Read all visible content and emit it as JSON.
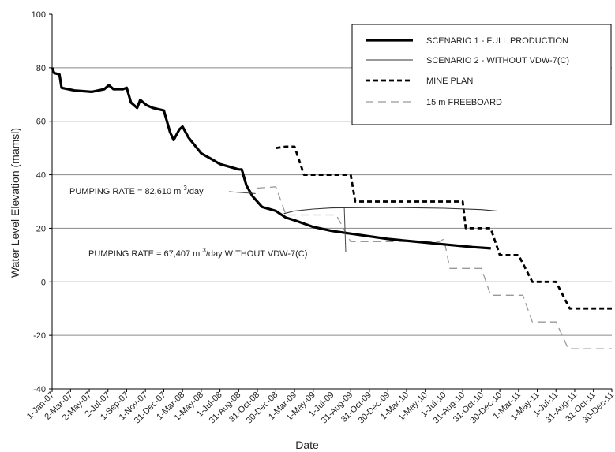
{
  "chart_data": {
    "type": "line",
    "xlabel": "Date",
    "ylabel": "Water Level Elevation (mamsl)",
    "ylim": [
      -40,
      100
    ],
    "yticks": [
      -40,
      -20,
      0,
      20,
      40,
      60,
      80,
      100
    ],
    "xlim": [
      "2007-01-01",
      "2011-12-30"
    ],
    "x_tick_labels": [
      {
        "date": "2007-01-01",
        "label": "1-Jan-07"
      },
      {
        "date": "2007-03-02",
        "label": "2-Mar-07"
      },
      {
        "date": "2007-05-02",
        "label": "2-May-07"
      },
      {
        "date": "2007-07-02",
        "label": "2-Jul-07"
      },
      {
        "date": "2007-09-01",
        "label": "1-Sep-07"
      },
      {
        "date": "2007-11-01",
        "label": "1-Nov-07"
      },
      {
        "date": "2007-12-31",
        "label": "31-Dec-07"
      },
      {
        "date": "2008-03-01",
        "label": "1-Mar-08"
      },
      {
        "date": "2008-05-01",
        "label": "1-May-08"
      },
      {
        "date": "2008-07-01",
        "label": "1-Jul-08"
      },
      {
        "date": "2008-08-31",
        "label": "31-Aug-08"
      },
      {
        "date": "2008-10-31",
        "label": "31-Oct-08"
      },
      {
        "date": "2008-12-30",
        "label": "30-Dec-08"
      },
      {
        "date": "2009-03-01",
        "label": "1-Mar-09"
      },
      {
        "date": "2009-05-01",
        "label": "1-May-09"
      },
      {
        "date": "2009-07-01",
        "label": "1-Jul-09"
      },
      {
        "date": "2009-08-31",
        "label": "31-Aug-09"
      },
      {
        "date": "2009-10-31",
        "label": "31-Oct-09"
      },
      {
        "date": "2009-12-30",
        "label": "30-Dec-09"
      },
      {
        "date": "2010-03-01",
        "label": "1-Mar-10"
      },
      {
        "date": "2010-05-01",
        "label": "1-May-10"
      },
      {
        "date": "2010-07-01",
        "label": "1-Jul-10"
      },
      {
        "date": "2010-08-31",
        "label": "31-Aug-10"
      },
      {
        "date": "2010-10-31",
        "label": "31-Oct-10"
      },
      {
        "date": "2010-12-30",
        "label": "30-Dec-10"
      },
      {
        "date": "2011-03-01",
        "label": "1-Mar-11"
      },
      {
        "date": "2011-05-01",
        "label": "1-May-11"
      },
      {
        "date": "2011-07-01",
        "label": "1-Jul-11"
      },
      {
        "date": "2011-08-31",
        "label": "31-Aug-11"
      },
      {
        "date": "2011-10-31",
        "label": "31-Oct-11"
      },
      {
        "date": "2011-12-30",
        "label": "30-Dec-11"
      }
    ],
    "grid": "horizontal",
    "legend_position": "top-right",
    "series": [
      {
        "name": "SCENARIO 1 - FULL PRODUCTION",
        "style": "solid-thick",
        "color": "#000000",
        "points": [
          [
            "2007-01-01",
            80
          ],
          [
            "2007-01-08",
            78
          ],
          [
            "2007-01-25",
            77.5
          ],
          [
            "2007-02-01",
            72.5
          ],
          [
            "2007-03-15",
            71.5
          ],
          [
            "2007-05-10",
            71
          ],
          [
            "2007-06-20",
            72
          ],
          [
            "2007-07-05",
            73.5
          ],
          [
            "2007-07-20",
            72
          ],
          [
            "2007-08-20",
            72
          ],
          [
            "2007-09-01",
            72.5
          ],
          [
            "2007-09-15",
            67
          ],
          [
            "2007-10-05",
            65
          ],
          [
            "2007-10-15",
            68
          ],
          [
            "2007-11-05",
            66
          ],
          [
            "2007-11-25",
            65
          ],
          [
            "2007-12-31",
            64
          ],
          [
            "2008-01-20",
            56
          ],
          [
            "2008-02-01",
            53
          ],
          [
            "2008-02-20",
            57
          ],
          [
            "2008-03-01",
            58
          ],
          [
            "2008-03-20",
            54
          ],
          [
            "2008-05-01",
            48
          ],
          [
            "2008-06-01",
            46
          ],
          [
            "2008-07-01",
            44
          ],
          [
            "2008-08-01",
            43
          ],
          [
            "2008-08-31",
            42
          ],
          [
            "2008-09-10",
            42
          ],
          [
            "2008-09-25",
            36
          ],
          [
            "2008-10-15",
            32
          ],
          [
            "2008-11-15",
            28
          ],
          [
            "2008-12-30",
            26.5
          ],
          [
            "2009-02-01",
            24
          ],
          [
            "2009-03-01",
            23
          ],
          [
            "2009-05-01",
            20.5
          ],
          [
            "2009-07-01",
            19
          ],
          [
            "2009-10-01",
            17.5
          ],
          [
            "2010-01-01",
            16
          ],
          [
            "2010-04-01",
            15
          ],
          [
            "2010-07-01",
            14
          ],
          [
            "2010-10-01",
            13
          ],
          [
            "2010-12-01",
            12.5
          ]
        ]
      },
      {
        "name": "SCENARIO 2 - WITHOUT VDW-7(C)",
        "style": "solid-thin",
        "color": "#333333",
        "points": [
          [
            "2009-01-25",
            25.5
          ],
          [
            "2009-03-01",
            26.5
          ],
          [
            "2009-05-01",
            27.2
          ],
          [
            "2009-07-01",
            27.6
          ],
          [
            "2010-01-01",
            27.8
          ],
          [
            "2010-07-01",
            27.5
          ],
          [
            "2010-10-31",
            27.0
          ],
          [
            "2010-12-20",
            26.5
          ]
        ]
      },
      {
        "name": "MINE PLAN",
        "style": "dashed-thick",
        "color": "#000000",
        "points": [
          [
            "2008-12-30",
            50
          ],
          [
            "2009-02-01",
            50.5
          ],
          [
            "2009-03-01",
            50.5
          ],
          [
            "2009-04-01",
            40
          ],
          [
            "2009-08-31",
            40
          ],
          [
            "2009-09-15",
            30
          ],
          [
            "2010-07-15",
            30
          ],
          [
            "2010-08-31",
            30
          ],
          [
            "2010-09-10",
            20
          ],
          [
            "2010-11-30",
            20
          ],
          [
            "2010-12-30",
            10
          ],
          [
            "2011-03-01",
            10
          ],
          [
            "2011-04-15",
            0
          ],
          [
            "2011-07-01",
            0
          ],
          [
            "2011-08-15",
            -10
          ],
          [
            "2011-12-30",
            -10
          ]
        ]
      },
      {
        "name": "15 m FREEBOARD",
        "style": "dashed-thin",
        "color": "#999999",
        "points": [
          [
            "2008-10-31",
            35
          ],
          [
            "2008-12-30",
            35.5
          ],
          [
            "2009-02-01",
            25
          ],
          [
            "2009-07-15",
            25
          ],
          [
            "2009-08-31",
            15
          ],
          [
            "2010-06-15",
            15
          ],
          [
            "2010-07-01",
            16
          ],
          [
            "2010-07-20",
            5
          ],
          [
            "2010-10-31",
            5
          ],
          [
            "2010-11-30",
            -5
          ],
          [
            "2011-03-15",
            -5
          ],
          [
            "2011-04-15",
            -15
          ],
          [
            "2011-07-01",
            -15
          ],
          [
            "2011-08-10",
            -25
          ],
          [
            "2011-12-30",
            -25
          ]
        ]
      }
    ],
    "annotations": [
      {
        "text": "PUMPING  RATE = 82,610 m 3/day",
        "target": [
          "2008-10-25",
          33
        ]
      },
      {
        "text": "PUMPING  RATE = 67,407 m 3/day WITHOUT VDW-7(C)",
        "target": [
          "2009-08-10",
          28
        ]
      }
    ]
  }
}
